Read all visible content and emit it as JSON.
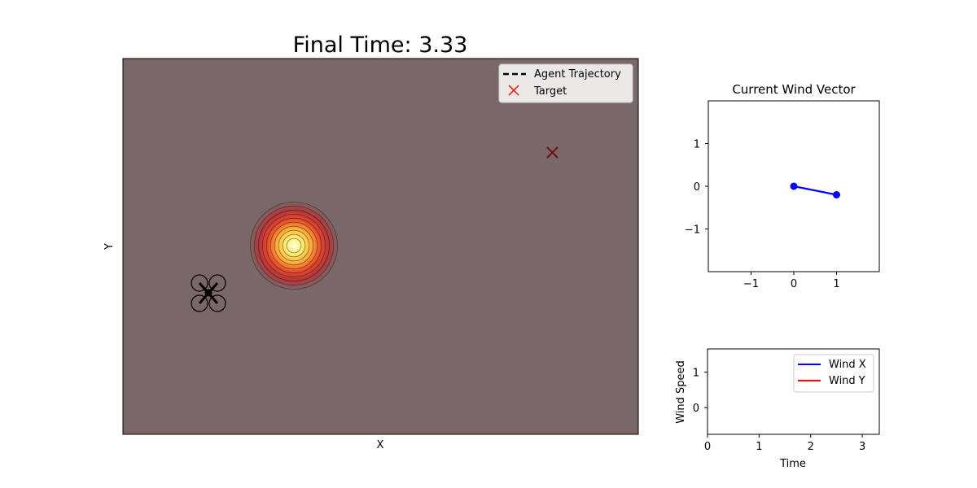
{
  "chart_data": [
    {
      "type": "scatter",
      "title": "Final Time: 3.33",
      "xlabel": "X",
      "ylabel": "Y",
      "grid": false,
      "background_color": "#7a6768",
      "legend": {
        "placement": "upper-right",
        "entries": [
          {
            "label": "Agent Trajectory",
            "style": "dashed-line",
            "color": "#000000"
          },
          {
            "label": "Target",
            "style": "x-marker",
            "color": "#e8231b"
          }
        ]
      },
      "hotspot": {
        "colormap": "hot",
        "rings": 10
      },
      "target_marker_color": "#6e1010",
      "agent_icon": "quadrotor-drone-icon"
    },
    {
      "type": "line",
      "title": "Current Wind Vector",
      "xlabel": "",
      "ylabel": "",
      "xlim": [
        -2,
        2
      ],
      "ylim": [
        -2,
        2
      ],
      "xticks": [
        -1,
        0,
        1
      ],
      "yticks": [
        -1,
        0,
        1
      ],
      "xtick_labels": [
        "−1",
        "0",
        "1"
      ],
      "ytick_labels": [
        "−1",
        "0",
        "1"
      ],
      "color": "#0000ff",
      "points": [
        {
          "x": 0,
          "y": 0
        },
        {
          "x": 1,
          "y": -0.2
        }
      ]
    },
    {
      "type": "line",
      "title": "",
      "xlabel": "Time",
      "ylabel": "Wind Speed",
      "xlim": [
        0,
        3.33
      ],
      "ylim": [
        -0.75,
        1.65
      ],
      "xticks": [
        0,
        1,
        2,
        3
      ],
      "yticks": [
        0,
        1
      ],
      "xtick_labels": [
        "0",
        "1",
        "2",
        "3"
      ],
      "ytick_labels": [
        "0",
        "1"
      ],
      "legend": {
        "placement": "upper-right"
      },
      "series": [
        {
          "name": "Wind X",
          "color": "#0000ff",
          "values": []
        },
        {
          "name": "Wind Y",
          "color": "#ff0000",
          "values": []
        }
      ]
    }
  ]
}
